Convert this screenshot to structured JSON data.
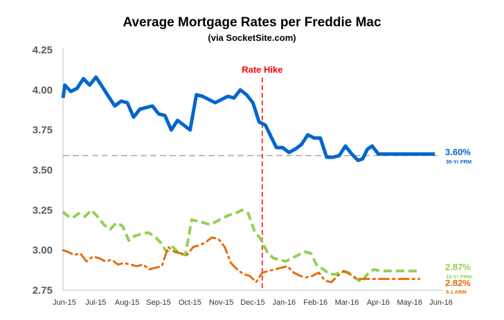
{
  "chart_data": {
    "type": "line",
    "title": "Average Mortgage Rates per Freddie Mac",
    "subtitle": "(via SocketSite.com)",
    "ylim": [
      2.75,
      4.25
    ],
    "yticks": [
      "2.75",
      "3.00",
      "3.25",
      "3.50",
      "3.75",
      "4.00",
      "4.25"
    ],
    "xlim": [
      0,
      12
    ],
    "x_tick_labels": [
      "Jun-15",
      "Jul-15",
      "Aug-15",
      "Sep-15",
      "Oct-15",
      "Nov-15",
      "Dec-15",
      "Jan-16",
      "Feb-16",
      "Mar-16",
      "Apr-16",
      "May-16",
      "Jun-16"
    ],
    "grid": false,
    "reference_line": {
      "y": 3.59,
      "color": "#a6a6a6"
    },
    "event_line": {
      "x": 6.35,
      "label": "Rate Hike",
      "color": "#ff0000"
    },
    "series": [
      {
        "name": "30-Yr FRM",
        "end_label": "3.60%",
        "color": "#0066cc",
        "style": "solid",
        "x": [
          0,
          0.06,
          0.25,
          0.45,
          0.65,
          0.85,
          1.05,
          1.25,
          1.45,
          1.65,
          1.85,
          2.05,
          2.25,
          2.45,
          2.65,
          2.85,
          3.05,
          3.25,
          3.45,
          3.65,
          3.85,
          4.05,
          4.25,
          4.45,
          4.65,
          4.85,
          5.05,
          5.25,
          5.45,
          5.65,
          5.85,
          6.05,
          6.25,
          6.45,
          6.6,
          6.8,
          7.0,
          7.2,
          7.4,
          7.6,
          7.8,
          8.0,
          8.2,
          8.4,
          8.6,
          8.8,
          9.0,
          9.2,
          9.4,
          9.55,
          9.7,
          9.85,
          10.05,
          10.25,
          10.45,
          10.65,
          10.85,
          11.05,
          11.25,
          11.45,
          11.65,
          11.85
        ],
        "y": [
          3.95,
          4.03,
          3.99,
          4.01,
          4.07,
          4.03,
          4.08,
          4.02,
          3.96,
          3.9,
          3.93,
          3.92,
          3.83,
          3.88,
          3.89,
          3.9,
          3.85,
          3.84,
          3.75,
          3.81,
          3.78,
          3.75,
          3.97,
          3.96,
          3.94,
          3.92,
          3.94,
          3.96,
          3.95,
          4.0,
          3.97,
          3.92,
          3.8,
          3.78,
          3.72,
          3.64,
          3.64,
          3.61,
          3.63,
          3.66,
          3.72,
          3.7,
          3.7,
          3.58,
          3.58,
          3.59,
          3.65,
          3.6,
          3.56,
          3.57,
          3.63,
          3.65,
          3.6,
          3.6,
          3.6,
          3.6,
          3.6,
          3.6,
          3.6,
          3.6,
          3.6,
          3.6
        ]
      },
      {
        "name": "15-Yr FRM",
        "end_label": "2.87%",
        "color": "#92d050",
        "style": "dashed",
        "x": [
          0,
          0.1,
          0.3,
          0.5,
          0.7,
          0.9,
          1.1,
          1.3,
          1.5,
          1.7,
          1.9,
          2.1,
          2.3,
          2.5,
          2.7,
          2.9,
          3.1,
          3.3,
          3.5,
          3.7,
          3.9,
          4.1,
          4.3,
          4.5,
          4.7,
          4.9,
          5.1,
          5.3,
          5.5,
          5.7,
          5.9,
          6.1,
          6.3,
          6.5,
          6.7,
          6.9,
          7.1,
          7.3,
          7.5,
          7.7,
          7.9,
          8.1,
          8.3,
          8.5,
          8.7,
          8.9,
          9.1,
          9.3,
          9.5,
          9.7,
          9.9,
          10.1,
          10.3,
          10.5,
          10.7,
          10.9,
          11.1,
          11.3
        ],
        "y": [
          3.24,
          3.22,
          3.2,
          3.23,
          3.21,
          3.25,
          3.21,
          3.16,
          3.13,
          3.17,
          3.15,
          3.06,
          3.09,
          3.1,
          3.11,
          3.09,
          3.05,
          2.99,
          3.02,
          2.98,
          2.97,
          3.19,
          3.18,
          3.17,
          3.16,
          3.18,
          3.2,
          3.22,
          3.23,
          3.25,
          3.23,
          3.12,
          3.07,
          2.99,
          2.95,
          2.94,
          2.93,
          2.95,
          2.97,
          2.99,
          2.98,
          2.9,
          2.88,
          2.85,
          2.85,
          2.87,
          2.86,
          2.83,
          2.8,
          2.85,
          2.88,
          2.87,
          2.87,
          2.87,
          2.87,
          2.87,
          2.87,
          2.87
        ]
      },
      {
        "name": "5-1 ARM",
        "end_label": "2.82%",
        "color": "#e46c0a",
        "style": "dash-dot",
        "x": [
          0,
          0.15,
          0.35,
          0.55,
          0.75,
          0.95,
          1.15,
          1.35,
          1.55,
          1.75,
          1.95,
          2.15,
          2.35,
          2.55,
          2.75,
          2.95,
          3.15,
          3.35,
          3.55,
          3.75,
          3.95,
          4.15,
          4.35,
          4.55,
          4.75,
          4.95,
          5.15,
          5.35,
          5.55,
          5.75,
          5.95,
          6.15,
          6.35,
          6.55,
          6.75,
          6.95,
          7.15,
          7.35,
          7.55,
          7.75,
          7.95,
          8.15,
          8.35,
          8.55,
          8.75,
          8.95,
          9.15,
          9.35,
          9.55,
          9.75,
          9.95,
          10.15,
          10.35,
          10.55,
          10.75,
          10.95,
          11.15,
          11.35
        ],
        "y": [
          3.0,
          2.99,
          2.97,
          2.98,
          2.93,
          2.96,
          2.95,
          2.93,
          2.94,
          2.91,
          2.92,
          2.91,
          2.9,
          2.91,
          2.88,
          2.89,
          2.9,
          3.02,
          2.99,
          2.98,
          2.97,
          3.02,
          3.03,
          3.05,
          3.08,
          3.07,
          3.02,
          2.92,
          2.88,
          2.85,
          2.84,
          2.8,
          2.86,
          2.87,
          2.88,
          2.89,
          2.9,
          2.86,
          2.84,
          2.83,
          2.84,
          2.86,
          2.81,
          2.8,
          2.84,
          2.87,
          2.85,
          2.82,
          2.82,
          2.82,
          2.82,
          2.82,
          2.82,
          2.82,
          2.82,
          2.82,
          2.82,
          2.82
        ]
      }
    ]
  }
}
